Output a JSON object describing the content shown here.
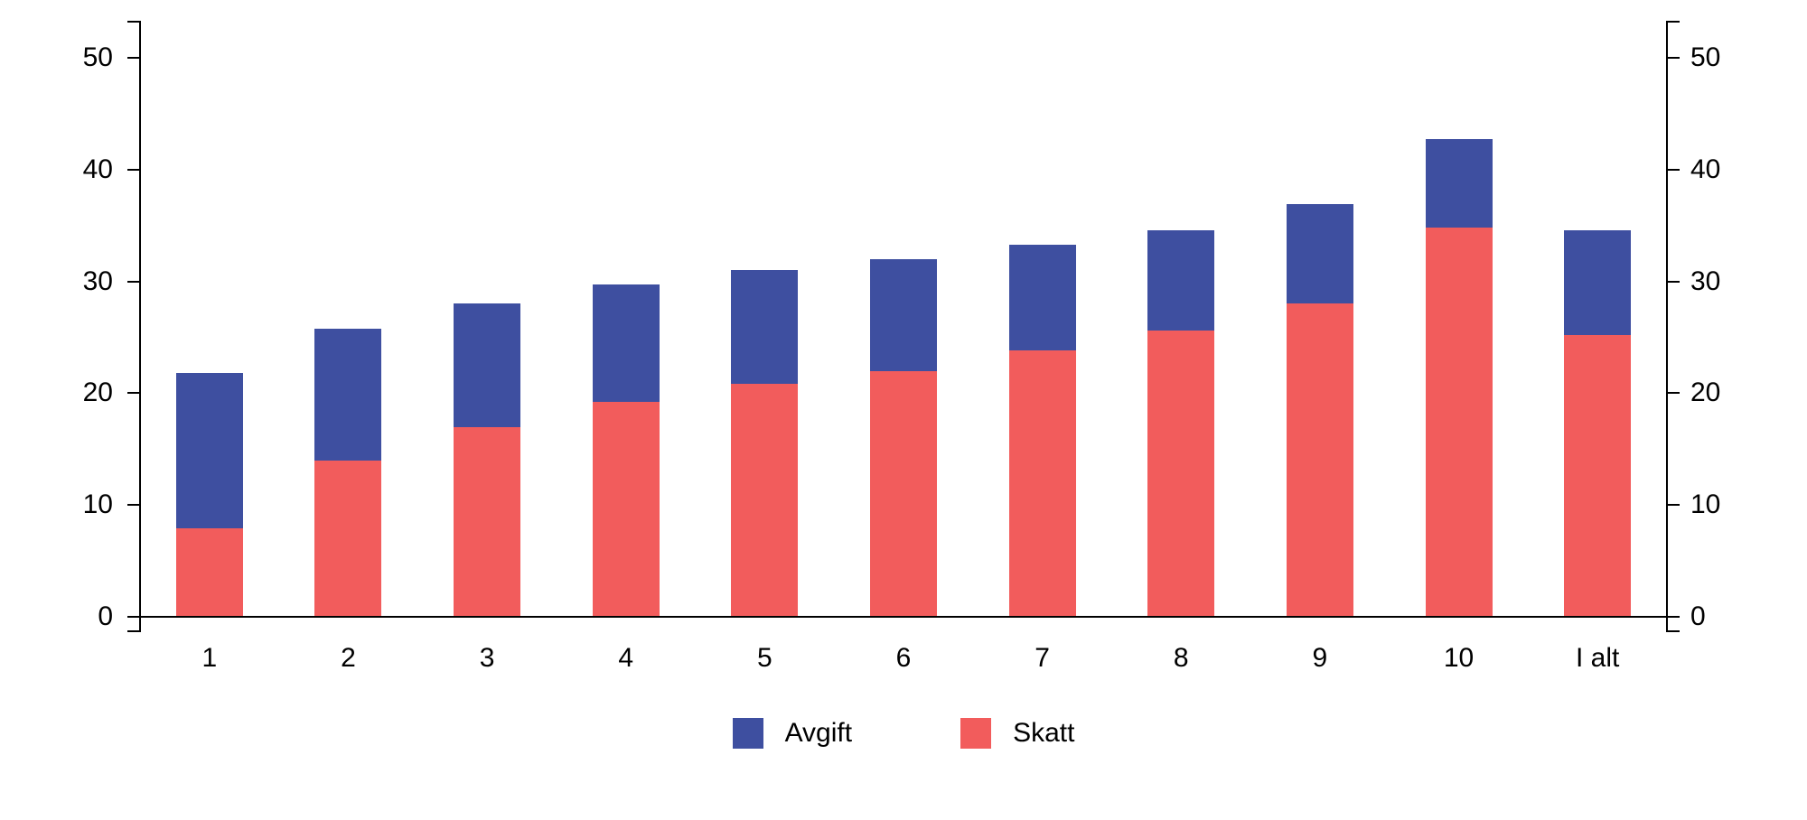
{
  "chart_data": {
    "type": "bar",
    "stacked": true,
    "title": "",
    "xlabel": "",
    "ylabel": "",
    "grid": false,
    "legend_position": "bottom-center",
    "categories": [
      "1",
      "2",
      "3",
      "4",
      "5",
      "6",
      "7",
      "8",
      "9",
      "10",
      "I alt"
    ],
    "series": [
      {
        "name": "Skatt",
        "color": "#f25c5c",
        "values": [
          7.9,
          14.0,
          17.0,
          19.2,
          20.8,
          22.0,
          23.8,
          25.6,
          28.0,
          34.8,
          25.2
        ]
      },
      {
        "name": "Avgift",
        "color": "#3e4fa0",
        "values": [
          13.9,
          11.8,
          11.0,
          10.5,
          10.2,
          10.0,
          9.5,
          9.0,
          8.9,
          7.9,
          9.4
        ]
      }
    ],
    "totals": [
      21.8,
      25.8,
      28.0,
      29.7,
      31.0,
      32.0,
      33.3,
      34.6,
      36.9,
      42.7,
      34.6
    ],
    "y_axis": {
      "min": 0,
      "max": 50,
      "ticks": [
        0,
        10,
        20,
        30,
        40,
        50
      ],
      "sides": [
        "left",
        "right"
      ]
    },
    "legend": [
      {
        "label": "Avgift",
        "color": "#3e4fa0"
      },
      {
        "label": "Skatt",
        "color": "#f25c5c"
      }
    ]
  }
}
